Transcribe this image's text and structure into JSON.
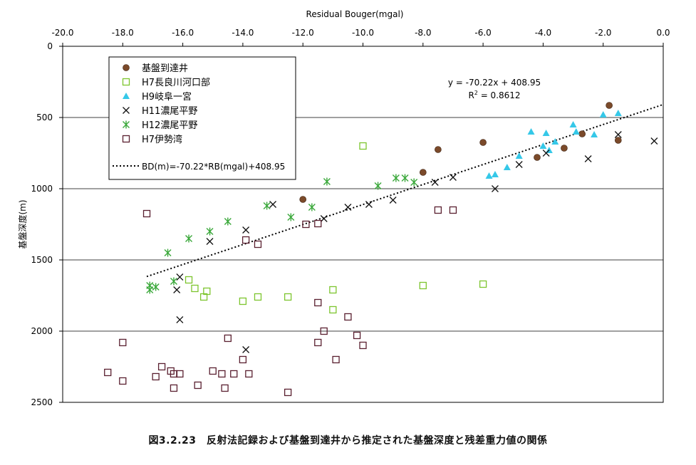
{
  "caption": "図3.2.23　反射法記録および基盤到達井から推定された基盤深度と残差重力値の関係",
  "chart_data": {
    "type": "scatter",
    "xlabel": "Residual Bouger(mgal)",
    "ylabel": "基盤深度(m)",
    "xlim": [
      -20.0,
      0.0
    ],
    "ylim": [
      0,
      2500
    ],
    "y_inverted": true,
    "x_axis_position": "top",
    "xticks": [
      "-20.0",
      "-18.0",
      "-16.0",
      "-14.0",
      "-12.0",
      "-10.0",
      "-8.0",
      "-6.0",
      "-4.0",
      "-2.0",
      "0.0"
    ],
    "yticks": [
      "0",
      "500",
      "1000",
      "1500",
      "2000",
      "2500"
    ],
    "grid": "horizontal",
    "legend_position": "top-left",
    "equation_text": "y = -70.22x + 408.95",
    "r2_text": "R",
    "r2_sup": "2",
    "r2_value": " = 0.8612",
    "trendline": {
      "name": "BD(m)=-70.22*RB(mgal)+408.95",
      "slope": -70.22,
      "intercept": 408.95,
      "x_range": [
        -17.2,
        0.0
      ],
      "color": "#000000"
    },
    "series": [
      {
        "name": "基盤到達井",
        "marker": "circle",
        "color": "#7b4a2a",
        "points": [
          [
            -12.0,
            1075
          ],
          [
            -8.0,
            885
          ],
          [
            -7.5,
            725
          ],
          [
            -6.0,
            675
          ],
          [
            -4.2,
            780
          ],
          [
            -3.3,
            715
          ],
          [
            -2.7,
            615
          ],
          [
            -1.8,
            415
          ],
          [
            -1.5,
            660
          ]
        ]
      },
      {
        "name": "H7長良川河口部",
        "marker": "square-open",
        "color": "#7dc52e",
        "points": [
          [
            -10.0,
            700
          ],
          [
            -15.8,
            1640
          ],
          [
            -15.6,
            1700
          ],
          [
            -15.3,
            1760
          ],
          [
            -15.2,
            1720
          ],
          [
            -14.0,
            1790
          ],
          [
            -13.5,
            1760
          ],
          [
            -12.5,
            1760
          ],
          [
            -11.0,
            1710
          ],
          [
            -11.0,
            1850
          ],
          [
            -8.0,
            1680
          ],
          [
            -6.0,
            1670
          ]
        ]
      },
      {
        "name": "H9岐阜一宮",
        "marker": "triangle",
        "color": "#35c8e8",
        "points": [
          [
            -5.8,
            910
          ],
          [
            -5.6,
            900
          ],
          [
            -5.2,
            850
          ],
          [
            -4.8,
            770
          ],
          [
            -4.4,
            600
          ],
          [
            -4.0,
            700
          ],
          [
            -3.9,
            610
          ],
          [
            -3.8,
            730
          ],
          [
            -3.6,
            670
          ],
          [
            -3.0,
            550
          ],
          [
            -2.9,
            600
          ],
          [
            -2.3,
            620
          ],
          [
            -2.0,
            480
          ],
          [
            -1.5,
            470
          ]
        ]
      },
      {
        "name": "H11濃尾平野",
        "marker": "x",
        "color": "#111111",
        "points": [
          [
            -13.0,
            1110
          ],
          [
            -13.9,
            1290
          ],
          [
            -15.1,
            1370
          ],
          [
            -16.2,
            1710
          ],
          [
            -16.1,
            1620
          ],
          [
            -16.1,
            1920
          ],
          [
            -13.9,
            2130
          ],
          [
            -11.3,
            1210
          ],
          [
            -10.5,
            1130
          ],
          [
            -9.8,
            1110
          ],
          [
            -9.0,
            1080
          ],
          [
            -7.6,
            955
          ],
          [
            -7.0,
            920
          ],
          [
            -5.6,
            1000
          ],
          [
            -4.8,
            830
          ],
          [
            -3.9,
            750
          ],
          [
            -2.5,
            790
          ],
          [
            -1.5,
            620
          ],
          [
            -0.3,
            665
          ]
        ]
      },
      {
        "name": "H12濃尾平野",
        "marker": "asterisk",
        "color": "#3aa83a",
        "points": [
          [
            -17.1,
            1680
          ],
          [
            -17.1,
            1710
          ],
          [
            -16.9,
            1690
          ],
          [
            -16.3,
            1650
          ],
          [
            -16.5,
            1450
          ],
          [
            -15.8,
            1350
          ],
          [
            -15.1,
            1300
          ],
          [
            -14.5,
            1230
          ],
          [
            -13.2,
            1120
          ],
          [
            -12.4,
            1200
          ],
          [
            -11.7,
            1130
          ],
          [
            -11.2,
            950
          ],
          [
            -9.5,
            980
          ],
          [
            -8.9,
            925
          ],
          [
            -8.6,
            925
          ],
          [
            -8.3,
            955
          ]
        ]
      },
      {
        "name": "H7伊勢湾",
        "marker": "square-open",
        "color": "#5a2030",
        "points": [
          [
            -17.2,
            1175
          ],
          [
            -18.0,
            2080
          ],
          [
            -18.5,
            2290
          ],
          [
            -18.0,
            2350
          ],
          [
            -16.9,
            2320
          ],
          [
            -16.7,
            2250
          ],
          [
            -16.4,
            2280
          ],
          [
            -16.3,
            2300
          ],
          [
            -16.1,
            2300
          ],
          [
            -16.3,
            2400
          ],
          [
            -15.5,
            2380
          ],
          [
            -15.0,
            2280
          ],
          [
            -14.7,
            2300
          ],
          [
            -14.6,
            2400
          ],
          [
            -14.5,
            2050
          ],
          [
            -14.3,
            2300
          ],
          [
            -14.0,
            2200
          ],
          [
            -13.8,
            2300
          ],
          [
            -13.9,
            1360
          ],
          [
            -13.5,
            1390
          ],
          [
            -12.5,
            2430
          ],
          [
            -11.9,
            1250
          ],
          [
            -11.5,
            1245
          ],
          [
            -11.5,
            1800
          ],
          [
            -11.5,
            2080
          ],
          [
            -11.3,
            2000
          ],
          [
            -10.9,
            2200
          ],
          [
            -10.5,
            1900
          ],
          [
            -10.2,
            2030
          ],
          [
            -10.0,
            2100
          ],
          [
            -7.5,
            1150
          ],
          [
            -7.0,
            1150
          ]
        ]
      }
    ]
  }
}
